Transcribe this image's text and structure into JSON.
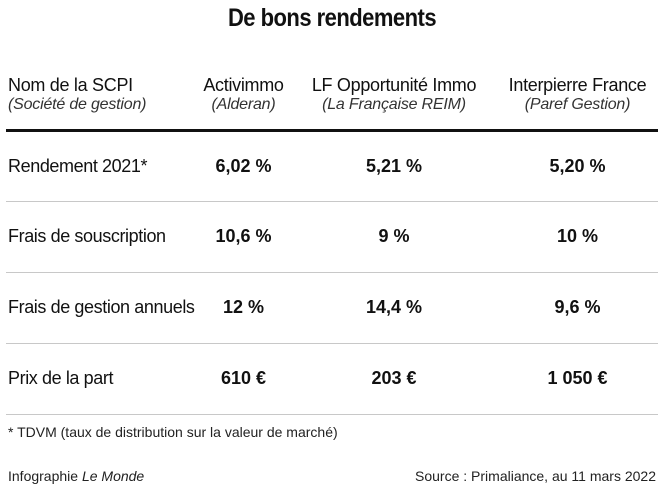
{
  "title": "De bons rendements",
  "table": {
    "headers": [
      {
        "name": "Nom de la SCPI",
        "sub": "(Société de gestion)"
      },
      {
        "name": "Activimmo",
        "sub": "(Alderan)"
      },
      {
        "name": "LF Opportunité Immo",
        "sub": "(La Française REIM)"
      },
      {
        "name": "Interpierre France",
        "sub": "(Paref Gestion)"
      }
    ],
    "rows": [
      {
        "label": "Rendement 2021*",
        "values": [
          "6,02 %",
          "5,21 %",
          "5,20 %"
        ]
      },
      {
        "label": "Frais de souscription",
        "values": [
          "10,6 %",
          "9 %",
          "10 %"
        ]
      },
      {
        "label": "Frais de gestion annuels",
        "values": [
          "12 %",
          "14,4 %",
          "9,6 %"
        ]
      },
      {
        "label": "Prix de la part",
        "values": [
          "610 €",
          "203 €",
          "1 050 €"
        ]
      }
    ]
  },
  "footnote": "* TDVM (taux de distribution sur la valeur de marché)",
  "credit": {
    "prefix": "Infographie ",
    "publication": "Le Monde"
  },
  "source": "Source : Primaliance, au 11 mars 2022"
}
